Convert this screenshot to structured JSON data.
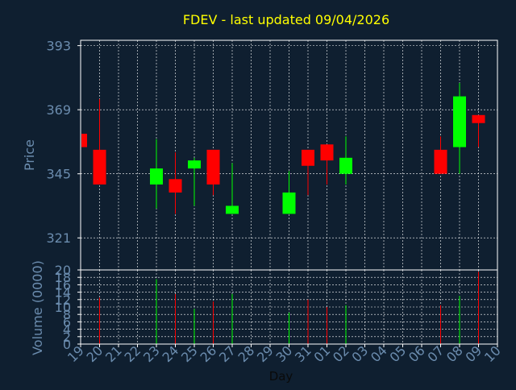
{
  "chart_data": {
    "type": "candlestick",
    "title": "FDEV - last updated 09/04/2026",
    "xlabel": "Day",
    "colors": {
      "background": "#0f1f30",
      "plot_border": "#ffffff",
      "grid": "#ffffff",
      "axis_text": "#6b8cae",
      "title": "#ffff00",
      "up": "#00ff00",
      "down": "#ff0000"
    },
    "price_panel": {
      "ylabel": "Price",
      "ylim": [
        309,
        395
      ],
      "yticks": [
        321,
        345,
        369,
        393
      ],
      "grid": true
    },
    "volume_panel": {
      "ylabel": "Volume (0000)",
      "ylim": [
        0,
        20
      ],
      "yticks": [
        0,
        2,
        4,
        6,
        8,
        10,
        12,
        14,
        16,
        18,
        20
      ],
      "grid": true
    },
    "x_ticks": [
      "19",
      "20",
      "21",
      "22",
      "23",
      "24",
      "25",
      "26",
      "27",
      "28",
      "29",
      "30",
      "31",
      "01",
      "02",
      "03",
      "04",
      "05",
      "06",
      "07",
      "08",
      "09",
      "10"
    ],
    "candles": [
      {
        "x": 0,
        "open": 360,
        "high": 360,
        "low": 355,
        "close": 355,
        "volume": 0
      },
      {
        "x": 1,
        "open": 354,
        "high": 373,
        "low": 341,
        "close": 341,
        "volume": 12.5
      },
      {
        "x": 4,
        "open": 341,
        "high": 358,
        "low": 332,
        "close": 347,
        "volume": 17.5
      },
      {
        "x": 5,
        "open": 343,
        "high": 353,
        "low": 330,
        "close": 338,
        "volume": 13.5
      },
      {
        "x": 6,
        "open": 347,
        "high": 351,
        "low": 333,
        "close": 350,
        "volume": 9.5
      },
      {
        "x": 7,
        "open": 354,
        "high": 354,
        "low": 337,
        "close": 341,
        "volume": 11.5
      },
      {
        "x": 8,
        "open": 330,
        "high": 349,
        "low": 330,
        "close": 333,
        "volume": 13.5
      },
      {
        "x": 11,
        "open": 330,
        "high": 346,
        "low": 330,
        "close": 338,
        "volume": 8.5
      },
      {
        "x": 12,
        "open": 354,
        "high": 354,
        "low": 337,
        "close": 348,
        "volume": 12
      },
      {
        "x": 13,
        "open": 356,
        "high": 356,
        "low": 341,
        "close": 350,
        "volume": 10
      },
      {
        "x": 14,
        "open": 345,
        "high": 359,
        "low": 341,
        "close": 351,
        "volume": 10.5
      },
      {
        "x": 19,
        "open": 354,
        "high": 359,
        "low": 345,
        "close": 345,
        "volume": 10.5
      },
      {
        "x": 20,
        "open": 355,
        "high": 379,
        "low": 345,
        "close": 374,
        "volume": 13
      },
      {
        "x": 21,
        "open": 367,
        "high": 367,
        "low": 355,
        "close": 364,
        "volume": 19.5
      }
    ]
  }
}
